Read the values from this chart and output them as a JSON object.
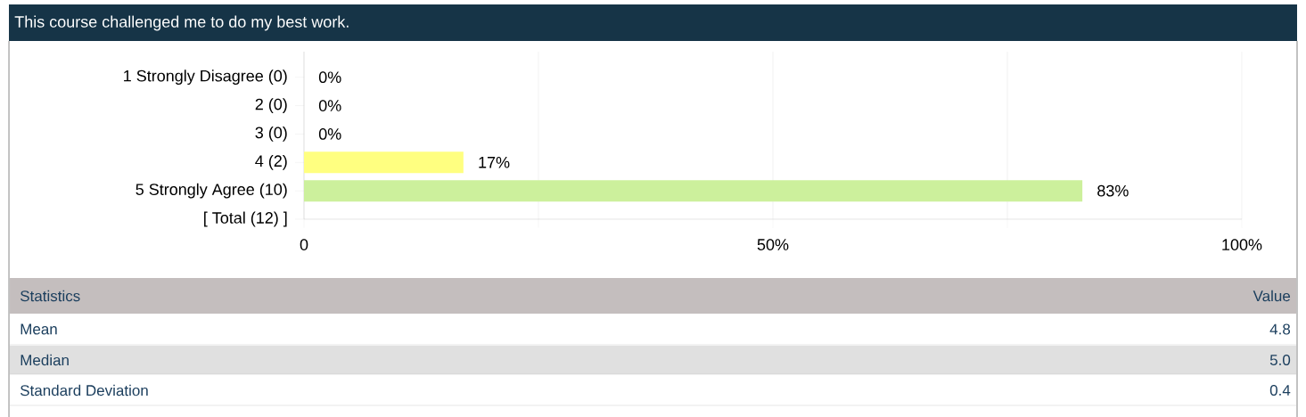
{
  "chart_data": {
    "type": "bar",
    "orientation": "horizontal",
    "title": "This course challenged me to do my best work.",
    "categories": [
      "1 Strongly Disagree (0)",
      "2 (0)",
      "3 (0)",
      "4 (2)",
      "5 Strongly Agree (10)",
      "[ Total (12) ]"
    ],
    "values": [
      0,
      0,
      0,
      17,
      83,
      null
    ],
    "colors": [
      null,
      null,
      null,
      "#ffff80",
      "#ccf09c",
      null
    ],
    "value_labels": [
      "0%",
      "0%",
      "0%",
      "17%",
      "83%",
      null
    ],
    "xlim": [
      0,
      100
    ],
    "xticks": [
      0,
      {
        "value": 25,
        "label": null
      },
      {
        "value": 50,
        "label": "50%"
      },
      {
        "value": 75,
        "label": null
      },
      {
        "value": 100,
        "label": "100%"
      }
    ],
    "grid": "x",
    "annotations": [
      "Statistics",
      "Value",
      "Mean",
      "4.8",
      "Median",
      "5.0",
      "Standard Deviation",
      "0.4"
    ]
  }
}
